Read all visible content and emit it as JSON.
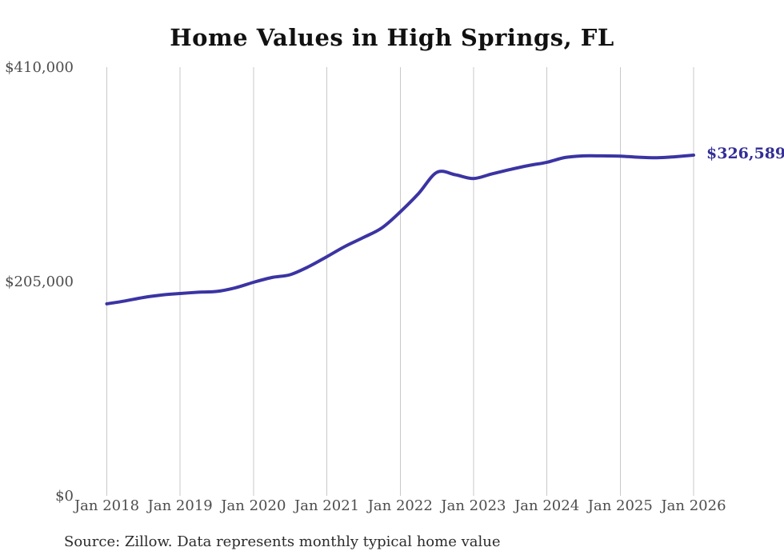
{
  "title": "Home Values in High Springs, FL",
  "source_note": "Source: Zillow. Data represents monthly typical home value",
  "end_label": "$326,589",
  "colors": {
    "background": "#ffffff",
    "line": "#3b34a3",
    "end_label_text": "#322e96",
    "grid": "#c9c9c9",
    "axis_text": "#4d4d4d",
    "title_text": "#111111",
    "source_text": "#2b2b2b"
  },
  "chart_data": {
    "type": "line",
    "title": "Home Values in High Springs, FL",
    "xlabel": "",
    "ylabel": "",
    "ylim": [
      0,
      410000
    ],
    "grid": "vertical-only",
    "legend": "none",
    "y_ticks": [
      0,
      205000,
      410000
    ],
    "y_tick_labels": [
      "$0",
      "$205,000",
      "$410,000"
    ],
    "x_tick_labels": [
      "Jan 2018",
      "Jan 2019",
      "Jan 2020",
      "Jan 2021",
      "Jan 2022",
      "Jan 2023",
      "Jan 2024",
      "Jan 2025",
      "Jan 2026"
    ],
    "series": [
      {
        "name": "Typical home value",
        "x": [
          "2018-01",
          "2018-04",
          "2018-07",
          "2018-10",
          "2019-01",
          "2019-04",
          "2019-07",
          "2019-10",
          "2020-01",
          "2020-04",
          "2020-07",
          "2020-10",
          "2021-01",
          "2021-04",
          "2021-07",
          "2021-10",
          "2022-01",
          "2022-04",
          "2022-07",
          "2022-10",
          "2023-01",
          "2023-04",
          "2023-07",
          "2023-10",
          "2024-01",
          "2024-04",
          "2024-07",
          "2024-10",
          "2025-01",
          "2025-04",
          "2025-07",
          "2025-10",
          "2026-01"
        ],
        "values": [
          184400,
          187200,
          190500,
          192800,
          194300,
          195500,
          196300,
          199700,
          205000,
          209600,
          212300,
          219900,
          229500,
          239400,
          247900,
          257000,
          272300,
          289900,
          310200,
          307900,
          304300,
          308700,
          312900,
          316700,
          319800,
          324400,
          325900,
          325900,
          325700,
          324600,
          324100,
          325100,
          326589
        ]
      }
    ],
    "end_annotation": {
      "text": "$326,589",
      "value": 326589
    }
  }
}
